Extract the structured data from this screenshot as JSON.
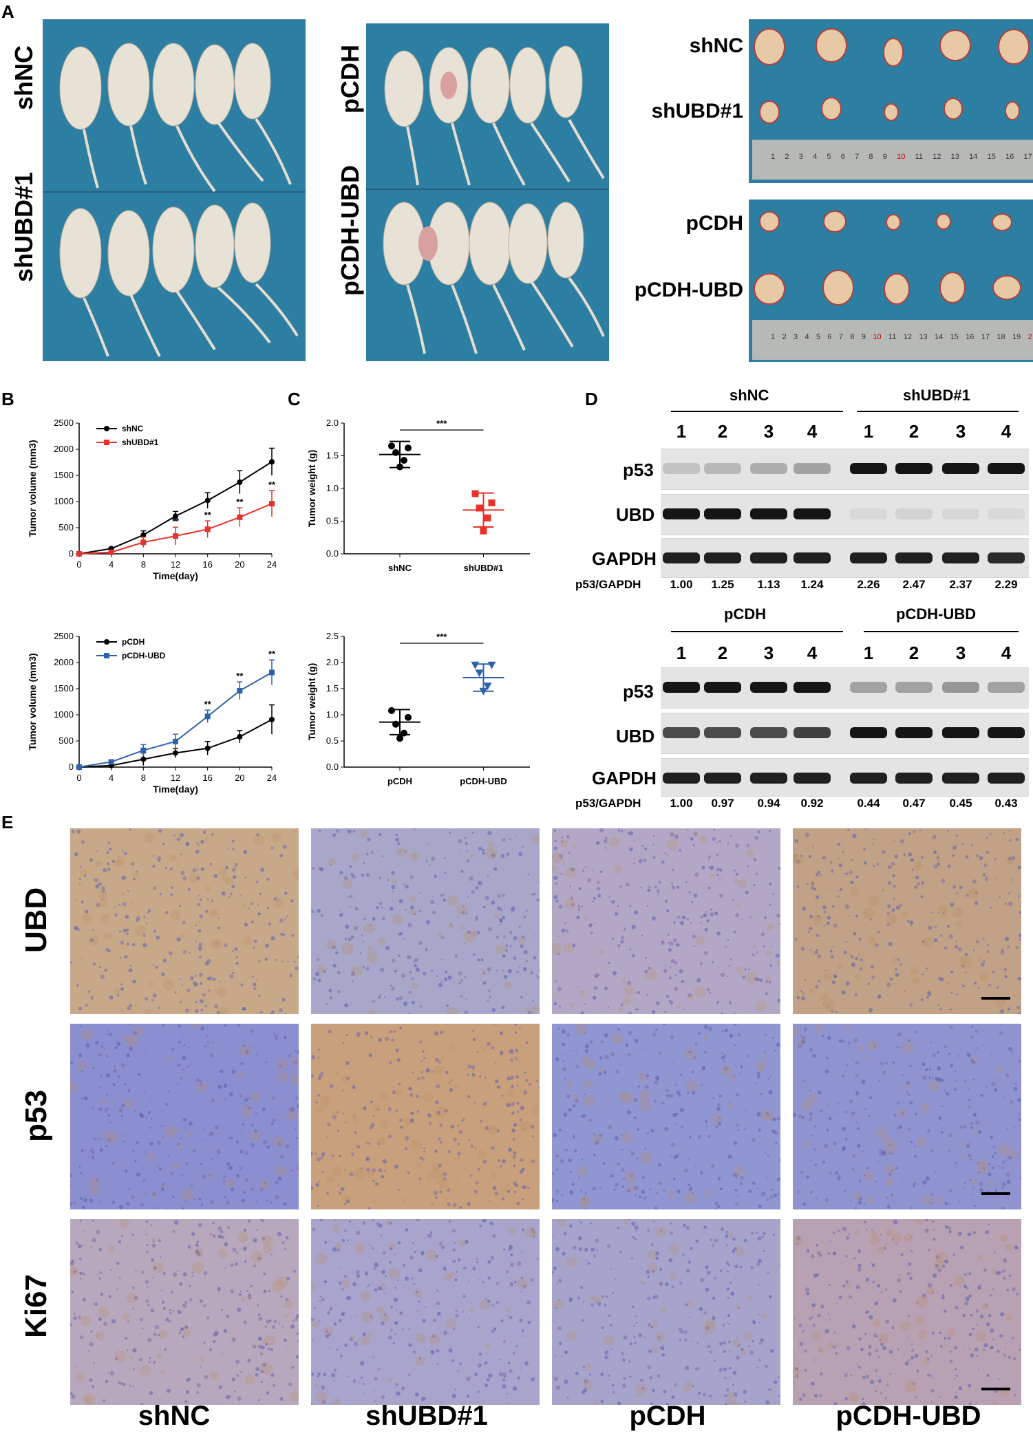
{
  "panels": {
    "A": "A",
    "B": "B",
    "C": "C",
    "D": "D",
    "E": "E"
  },
  "panelA": {
    "mice1_top": "shNC",
    "mice1_bottom": "shUBD#1",
    "mice2_top": "pCDH",
    "mice2_bottom": "pCDH-UBD",
    "tumor1_top": "shNC",
    "tumor1_bottom": "shUBD#1",
    "tumor2_top": "pCDH",
    "tumor2_bottom": "pCDH-UBD",
    "ruler1_ticks": [
      "1",
      "2",
      "3",
      "4",
      "5",
      "6",
      "7",
      "8",
      "9",
      "10",
      "11",
      "12",
      "13",
      "14",
      "15",
      "16",
      "17"
    ],
    "ruler2_ticks": [
      "1",
      "2",
      "3",
      "4",
      "5",
      "6",
      "7",
      "8",
      "9",
      "10",
      "11",
      "12",
      "13",
      "14",
      "15",
      "16",
      "17",
      "18",
      "19",
      "2"
    ]
  },
  "chart_data": [
    {
      "type": "line",
      "xlabel": "Time(day)",
      "ylabel": "Tumor volume (mm3)",
      "x": [
        0,
        4,
        8,
        12,
        16,
        20,
        24
      ],
      "ylim": [
        0,
        2500
      ],
      "yticks": [
        0,
        500,
        1000,
        1500,
        2000,
        2500
      ],
      "series": [
        {
          "name": "shNC",
          "color": "#000000",
          "values": [
            0,
            100,
            360,
            720,
            1020,
            1370,
            1760
          ],
          "err": [
            0,
            20,
            80,
            90,
            150,
            220,
            260
          ]
        },
        {
          "name": "shUBD#1",
          "color": "#e8312a",
          "values": [
            0,
            30,
            220,
            340,
            470,
            700,
            960
          ],
          "err": [
            0,
            15,
            100,
            170,
            160,
            180,
            250
          ]
        }
      ],
      "annotations": [
        {
          "x": 12,
          "text": "**"
        },
        {
          "x": 16,
          "text": "**"
        },
        {
          "x": 20,
          "text": "**"
        },
        {
          "x": 24,
          "text": "**"
        }
      ]
    },
    {
      "type": "scatter",
      "ylabel": "Tumor weight (g)",
      "categories": [
        "shNC",
        "shUBD#1"
      ],
      "ylim": [
        0,
        2.0
      ],
      "yticks": [
        "0.0",
        "0.5",
        "1.0",
        "1.5",
        "2.0"
      ],
      "series": [
        {
          "name": "shNC",
          "color": "#000000",
          "points": [
            1.65,
            1.62,
            1.55,
            1.43,
            1.33
          ],
          "mean": 1.52,
          "sd": 0.2
        },
        {
          "name": "shUBD#1",
          "color": "#e8312a",
          "points": [
            0.92,
            0.78,
            0.7,
            0.55,
            0.35
          ],
          "mean": 0.67,
          "sd": 0.26
        }
      ],
      "significance": "***"
    },
    {
      "type": "line",
      "xlabel": "Time(day)",
      "ylabel": "Tumor volume (mm3)",
      "x": [
        0,
        4,
        8,
        12,
        16,
        20,
        24
      ],
      "ylim": [
        0,
        2500
      ],
      "yticks": [
        0,
        500,
        1000,
        1500,
        2000,
        2500
      ],
      "series": [
        {
          "name": "pCDH",
          "color": "#000000",
          "values": [
            0,
            30,
            150,
            270,
            360,
            580,
            910
          ],
          "err": [
            0,
            20,
            120,
            90,
            130,
            120,
            280
          ]
        },
        {
          "name": "pCDH-UBD",
          "color": "#2e62ad",
          "values": [
            0,
            100,
            320,
            490,
            970,
            1460,
            1810
          ],
          "err": [
            0,
            30,
            110,
            140,
            120,
            170,
            240
          ]
        }
      ],
      "annotations": [
        {
          "x": 16,
          "text": "**"
        },
        {
          "x": 20,
          "text": "**"
        },
        {
          "x": 24,
          "text": "**"
        }
      ]
    },
    {
      "type": "scatter",
      "ylabel": "Tumor weight (g)",
      "categories": [
        "pCDH",
        "pCDH-UBD"
      ],
      "ylim": [
        0,
        2.5
      ],
      "yticks": [
        "0.0",
        "0.5",
        "1.0",
        "1.5",
        "2.0",
        "2.5"
      ],
      "series": [
        {
          "name": "pCDH",
          "color": "#000000",
          "points": [
            1.08,
            0.95,
            0.82,
            0.65,
            0.55
          ],
          "mean": 0.86,
          "sd": 0.24
        },
        {
          "name": "pCDH-UBD",
          "color": "#2e62ad",
          "points": [
            1.95,
            1.95,
            1.8,
            1.55,
            1.45
          ],
          "mean": 1.71,
          "sd": 0.26
        }
      ],
      "significance": "***"
    }
  ],
  "panelD": {
    "top": {
      "group1": "shNC",
      "group2": "shUBD#1",
      "lanes": [
        "1",
        "2",
        "3",
        "4",
        "1",
        "2",
        "3",
        "4"
      ],
      "rows": [
        "p53",
        "UBD",
        "GAPDH"
      ],
      "ratio_label": "p53/GAPDH",
      "ratios": [
        "1.00",
        "1.25",
        "1.13",
        "1.24",
        "2.26",
        "2.47",
        "2.37",
        "2.29"
      ]
    },
    "bottom": {
      "group1": "pCDH",
      "group2": "pCDH-UBD",
      "lanes": [
        "1",
        "2",
        "3",
        "4",
        "1",
        "2",
        "3",
        "4"
      ],
      "rows": [
        "p53",
        "UBD",
        "GAPDH"
      ],
      "ratio_label": "p53/GAPDH",
      "ratios": [
        "1.00",
        "0.97",
        "0.94",
        "0.92",
        "0.44",
        "0.47",
        "0.45",
        "0.43"
      ]
    }
  },
  "panelE": {
    "rows": [
      "UBD",
      "p53",
      "Ki67"
    ],
    "columns": [
      "shNC",
      "shUBD#1",
      "pCDH",
      "pCDH-UBD"
    ]
  }
}
